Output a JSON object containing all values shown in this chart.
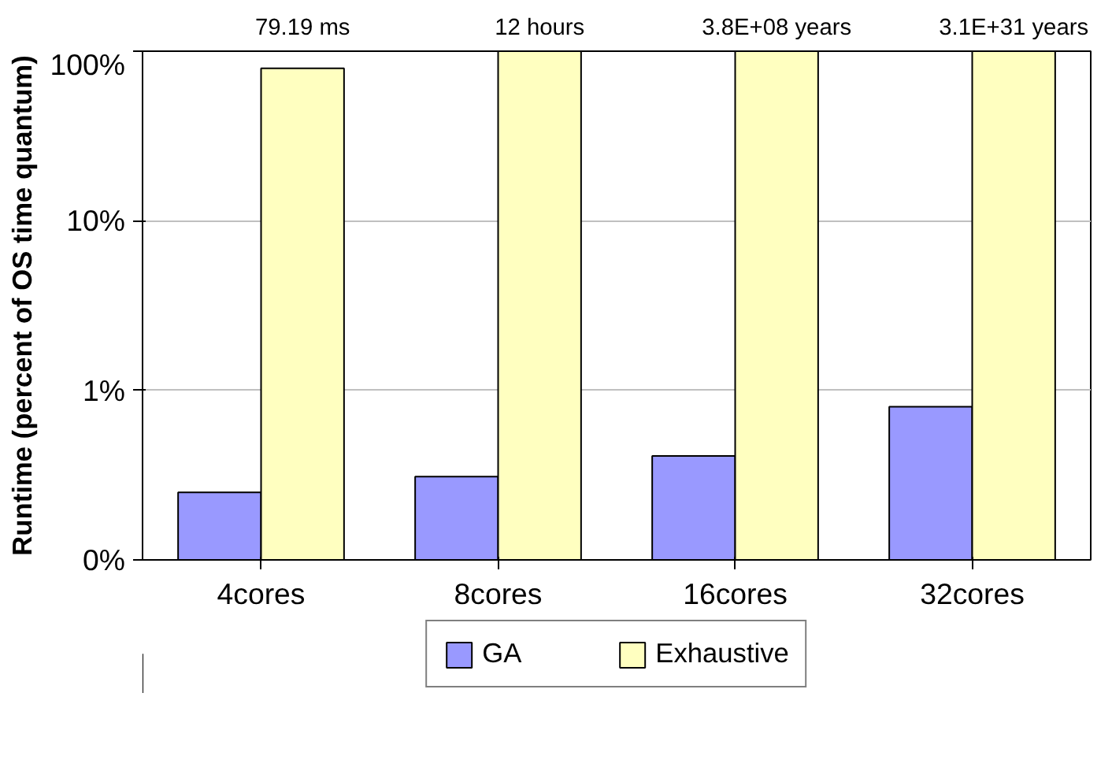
{
  "chart_data": {
    "type": "bar",
    "ylabel": "Runtime (percent of OS time quantum)",
    "categories": [
      "4cores",
      "8cores",
      "16cores",
      "32cores"
    ],
    "series": [
      {
        "name": "GA",
        "color": "#9999ff",
        "values": [
          0.25,
          0.31,
          0.41,
          0.8
        ]
      },
      {
        "name": "Exhaustive",
        "color": "#ffffc0",
        "values": [
          79.19,
          100,
          100,
          100
        ]
      }
    ],
    "annotations": [
      "79.19 ms",
      "12 hours",
      "3.8E+08 years",
      "3.1E+31 years"
    ],
    "log": "y",
    "ylim": [
      0.1,
      100
    ],
    "yticks": [
      {
        "value": 0.1,
        "label": "0%"
      },
      {
        "value": 1,
        "label": "1%"
      },
      {
        "value": 10,
        "label": "10%"
      },
      {
        "value": 100,
        "label": "100%"
      }
    ],
    "grid": "y",
    "legend": "bottom"
  }
}
